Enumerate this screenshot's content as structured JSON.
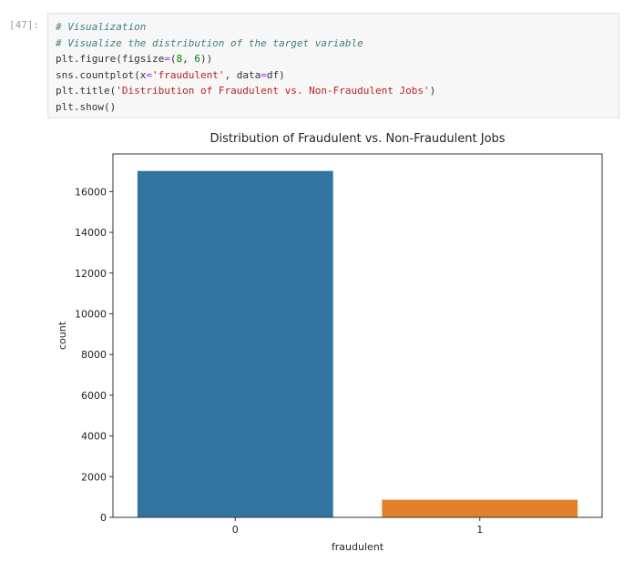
{
  "cell": {
    "prompt": "[47]:",
    "code_lines": [
      [
        {
          "t": "# Visualization",
          "c": "c-comment"
        }
      ],
      [
        {
          "t": "# Visualize the distribution of the target variable",
          "c": "c-comment"
        }
      ],
      [
        {
          "t": "plt.figure(figsize",
          "c": "c-default"
        },
        {
          "t": "=",
          "c": "c-op"
        },
        {
          "t": "(",
          "c": "c-default"
        },
        {
          "t": "8",
          "c": "c-num"
        },
        {
          "t": ", ",
          "c": "c-default"
        },
        {
          "t": "6",
          "c": "c-num"
        },
        {
          "t": "))",
          "c": "c-default"
        }
      ],
      [
        {
          "t": "sns.countplot(x",
          "c": "c-default"
        },
        {
          "t": "=",
          "c": "c-op"
        },
        {
          "t": "'fraudulent'",
          "c": "c-str"
        },
        {
          "t": ", data",
          "c": "c-default"
        },
        {
          "t": "=",
          "c": "c-op"
        },
        {
          "t": "df)",
          "c": "c-default"
        }
      ],
      [
        {
          "t": "plt.title(",
          "c": "c-default"
        },
        {
          "t": "'Distribution of Fraudulent vs. Non-Fraudulent Jobs'",
          "c": "c-str"
        },
        {
          "t": ")",
          "c": "c-default"
        }
      ],
      [
        {
          "t": "plt.show()",
          "c": "c-default"
        }
      ]
    ]
  },
  "chart_data": {
    "type": "bar",
    "title": "Distribution of Fraudulent vs. Non-Fraudulent Jobs",
    "xlabel": "fraudulent",
    "ylabel": "count",
    "categories": [
      "0",
      "1"
    ],
    "values": [
      17014,
      866
    ],
    "colors": [
      "#3274a1",
      "#e1812c"
    ],
    "ylim": [
      0,
      17850
    ],
    "yticks": [
      0,
      2000,
      4000,
      6000,
      8000,
      10000,
      12000,
      14000,
      16000
    ],
    "grid": false
  }
}
